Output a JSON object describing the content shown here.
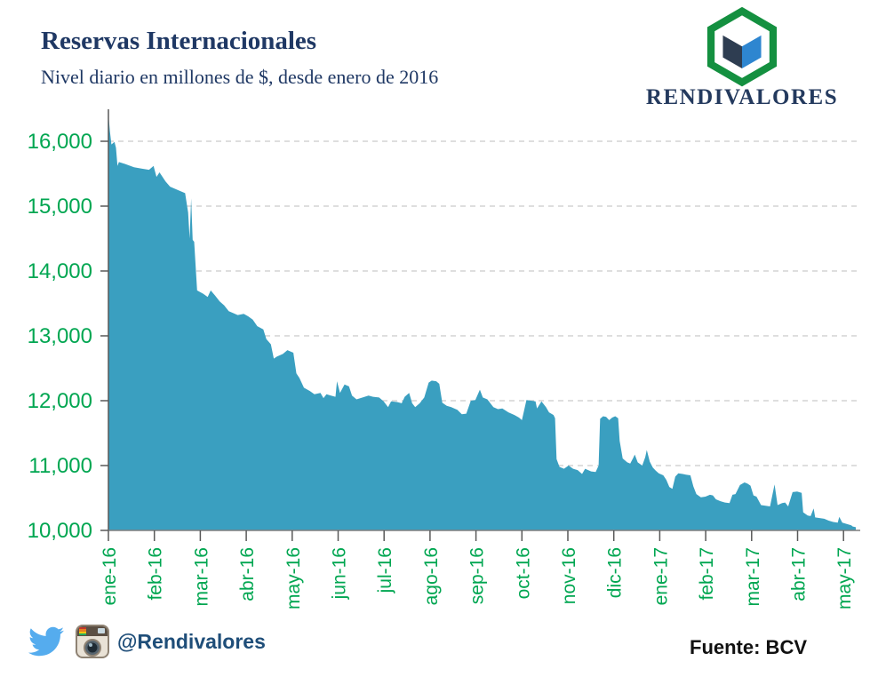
{
  "header": {
    "title": "Reservas Internacionales",
    "subtitle": "Nivel diario en millones de $, desde enero de 2016",
    "logo_text": "RENDIVALORES"
  },
  "footer": {
    "social_handle": "@Rendivalores",
    "source_label": "Fuente: BCV",
    "icons": [
      "twitter-icon",
      "instagram-icon"
    ]
  },
  "colors": {
    "title_navy": "#1F3864",
    "axis_green": "#00A651",
    "area_fill": "#3A9FC0",
    "gridline": "#C9C9C9",
    "axis_line": "#7F7F7F",
    "tick": "#595959",
    "handle_navy": "#1F4E79",
    "source_black": "#111111",
    "twitter_blue": "#55ACEE",
    "logo_ring_green": "#149040",
    "logo_cube_left": "#2E3D51",
    "logo_cube_right": "#2E86D0"
  },
  "chart_data": {
    "type": "area",
    "title": "Reservas Internacionales",
    "subtitle": "Nivel diario en millones de $, desde enero de 2016",
    "xlabel": "",
    "ylabel": "",
    "ylim": [
      10000,
      16500
    ],
    "grid": "horizontal-dashed",
    "legend": "none",
    "y_ticks": [
      {
        "value": 10000,
        "label": "10,000"
      },
      {
        "value": 11000,
        "label": "11,000"
      },
      {
        "value": 12000,
        "label": "12,000"
      },
      {
        "value": 13000,
        "label": "13,000"
      },
      {
        "value": 14000,
        "label": "14,000"
      },
      {
        "value": 15000,
        "label": "15,000"
      },
      {
        "value": 16000,
        "label": "16,000"
      }
    ],
    "x_ticks": [
      "ene-16",
      "feb-16",
      "mar-16",
      "abr-16",
      "may-16",
      "jun-16",
      "jul-16",
      "ago-16",
      "sep-16",
      "oct-16",
      "nov-16",
      "dic-16",
      "ene-17",
      "feb-17",
      "mar-17",
      "abr-17",
      "may-17"
    ],
    "x_unit": "days since 2016-01-04",
    "x_max": 497,
    "series": [
      {
        "name": "Reservas internacionales (millones de $)",
        "points": [
          [
            0,
            16420
          ],
          [
            1,
            16150
          ],
          [
            2,
            15950
          ],
          [
            4,
            15990
          ],
          [
            5,
            15900
          ],
          [
            6,
            15620
          ],
          [
            7,
            15680
          ],
          [
            11,
            15650
          ],
          [
            17,
            15600
          ],
          [
            22,
            15580
          ],
          [
            27,
            15560
          ],
          [
            30,
            15620
          ],
          [
            32,
            15450
          ],
          [
            34,
            15520
          ],
          [
            38,
            15380
          ],
          [
            41,
            15300
          ],
          [
            46,
            15250
          ],
          [
            51,
            15200
          ],
          [
            53,
            14900
          ],
          [
            54,
            14500
          ],
          [
            55,
            15120
          ],
          [
            56,
            14480
          ],
          [
            57,
            14450
          ],
          [
            59,
            13700
          ],
          [
            63,
            13650
          ],
          [
            66,
            13600
          ],
          [
            68,
            13700
          ],
          [
            71,
            13620
          ],
          [
            74,
            13530
          ],
          [
            77,
            13470
          ],
          [
            80,
            13380
          ],
          [
            83,
            13350
          ],
          [
            86,
            13320
          ],
          [
            90,
            13340
          ],
          [
            93,
            13300
          ],
          [
            96,
            13250
          ],
          [
            99,
            13150
          ],
          [
            103,
            13100
          ],
          [
            105,
            12950
          ],
          [
            108,
            12870
          ],
          [
            110,
            12650
          ],
          [
            112,
            12680
          ],
          [
            116,
            12720
          ],
          [
            119,
            12780
          ],
          [
            123,
            12740
          ],
          [
            125,
            12420
          ],
          [
            127,
            12350
          ],
          [
            130,
            12200
          ],
          [
            134,
            12150
          ],
          [
            137,
            12100
          ],
          [
            141,
            12120
          ],
          [
            143,
            12040
          ],
          [
            145,
            12100
          ],
          [
            148,
            12080
          ],
          [
            151,
            12060
          ],
          [
            152,
            12300
          ],
          [
            154,
            12120
          ],
          [
            157,
            12250
          ],
          [
            160,
            12220
          ],
          [
            162,
            12080
          ],
          [
            165,
            12020
          ],
          [
            169,
            12050
          ],
          [
            173,
            12080
          ],
          [
            176,
            12060
          ],
          [
            180,
            12050
          ],
          [
            183,
            11990
          ],
          [
            186,
            11900
          ],
          [
            188,
            11990
          ],
          [
            192,
            11980
          ],
          [
            195,
            11960
          ],
          [
            197,
            12060
          ],
          [
            200,
            12120
          ],
          [
            202,
            11960
          ],
          [
            204,
            11900
          ],
          [
            207,
            11960
          ],
          [
            210,
            12050
          ],
          [
            213,
            12280
          ],
          [
            215,
            12310
          ],
          [
            218,
            12300
          ],
          [
            220,
            12260
          ],
          [
            222,
            11970
          ],
          [
            225,
            11920
          ],
          [
            228,
            11900
          ],
          [
            232,
            11860
          ],
          [
            235,
            11790
          ],
          [
            238,
            11800
          ],
          [
            241,
            12000
          ],
          [
            244,
            12010
          ],
          [
            247,
            12170
          ],
          [
            249,
            12050
          ],
          [
            252,
            12020
          ],
          [
            256,
            11900
          ],
          [
            259,
            11870
          ],
          [
            262,
            11880
          ],
          [
            266,
            11820
          ],
          [
            270,
            11780
          ],
          [
            273,
            11740
          ],
          [
            275,
            11700
          ],
          [
            278,
            12010
          ],
          [
            281,
            12000
          ],
          [
            284,
            11990
          ],
          [
            285,
            11880
          ],
          [
            288,
            11990
          ],
          [
            291,
            11900
          ],
          [
            293,
            11820
          ],
          [
            296,
            11780
          ],
          [
            297,
            11730
          ],
          [
            298,
            11100
          ],
          [
            300,
            10980
          ],
          [
            303,
            10950
          ],
          [
            306,
            11000
          ],
          [
            309,
            10950
          ],
          [
            312,
            10930
          ],
          [
            315,
            10870
          ],
          [
            317,
            10950
          ],
          [
            319,
            10930
          ],
          [
            321,
            10910
          ],
          [
            324,
            10900
          ],
          [
            326,
            11000
          ],
          [
            327,
            11720
          ],
          [
            329,
            11760
          ],
          [
            331,
            11750
          ],
          [
            333,
            11700
          ],
          [
            335,
            11740
          ],
          [
            337,
            11760
          ],
          [
            339,
            11730
          ],
          [
            340,
            11380
          ],
          [
            342,
            11110
          ],
          [
            345,
            11050
          ],
          [
            347,
            11030
          ],
          [
            349,
            11120
          ],
          [
            350,
            11170
          ],
          [
            352,
            11050
          ],
          [
            355,
            11000
          ],
          [
            357,
            11130
          ],
          [
            358,
            11240
          ],
          [
            360,
            11060
          ],
          [
            362,
            10970
          ],
          [
            364,
            10920
          ],
          [
            366,
            10880
          ],
          [
            369,
            10850
          ],
          [
            371,
            10780
          ],
          [
            373,
            10670
          ],
          [
            375,
            10640
          ],
          [
            377,
            10830
          ],
          [
            379,
            10880
          ],
          [
            382,
            10870
          ],
          [
            384,
            10860
          ],
          [
            387,
            10850
          ],
          [
            389,
            10680
          ],
          [
            391,
            10560
          ],
          [
            394,
            10510
          ],
          [
            397,
            10520
          ],
          [
            400,
            10550
          ],
          [
            402,
            10540
          ],
          [
            404,
            10480
          ],
          [
            407,
            10450
          ],
          [
            410,
            10430
          ],
          [
            413,
            10420
          ],
          [
            415,
            10550
          ],
          [
            417,
            10560
          ],
          [
            420,
            10700
          ],
          [
            423,
            10740
          ],
          [
            425,
            10720
          ],
          [
            427,
            10690
          ],
          [
            429,
            10540
          ],
          [
            431,
            10520
          ],
          [
            434,
            10390
          ],
          [
            437,
            10380
          ],
          [
            440,
            10370
          ],
          [
            443,
            10710
          ],
          [
            445,
            10390
          ],
          [
            448,
            10420
          ],
          [
            450,
            10430
          ],
          [
            452,
            10370
          ],
          [
            455,
            10590
          ],
          [
            458,
            10600
          ],
          [
            461,
            10580
          ],
          [
            462,
            10280
          ],
          [
            465,
            10230
          ],
          [
            467,
            10220
          ],
          [
            469,
            10340
          ],
          [
            470,
            10200
          ],
          [
            473,
            10190
          ],
          [
            476,
            10180
          ],
          [
            479,
            10150
          ],
          [
            482,
            10130
          ],
          [
            485,
            10120
          ],
          [
            486,
            10210
          ],
          [
            488,
            10120
          ],
          [
            491,
            10100
          ],
          [
            494,
            10080
          ],
          [
            495,
            10060
          ],
          [
            497,
            10050
          ]
        ]
      }
    ]
  }
}
